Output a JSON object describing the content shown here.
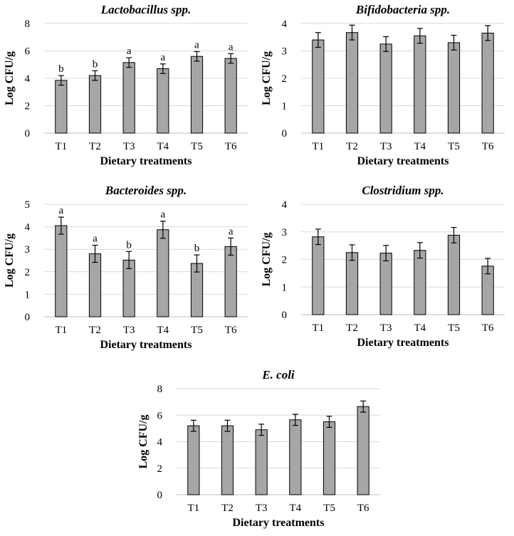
{
  "chart_data": [
    {
      "type": "bar",
      "title": "Lactobacillus spp.",
      "xlabel": "Dietary treatments",
      "ylabel": "Log CFU/g",
      "categories": [
        "T1",
        "T2",
        "T3",
        "T4",
        "T5",
        "T6"
      ],
      "values": [
        3.85,
        4.2,
        5.15,
        4.7,
        5.6,
        5.45
      ],
      "errors": [
        0.35,
        0.35,
        0.35,
        0.35,
        0.35,
        0.35
      ],
      "significance": [
        "b",
        "b",
        "a",
        "a",
        "a",
        "a"
      ],
      "ylim": [
        0,
        8
      ],
      "yticks": [
        "0",
        "2",
        "4",
        "6",
        "8"
      ],
      "bar_color": "#a6a6a6"
    },
    {
      "type": "bar",
      "title": "Bifidobacteria spp.",
      "xlabel": "Dietary treatments",
      "ylabel": "Log CFU/g",
      "categories": [
        "T1",
        "T2",
        "T3",
        "T4",
        "T5",
        "T6"
      ],
      "values": [
        3.4,
        3.67,
        3.25,
        3.55,
        3.3,
        3.65
      ],
      "errors": [
        0.27,
        0.27,
        0.27,
        0.27,
        0.27,
        0.27
      ],
      "significance": [],
      "ylim": [
        0,
        4
      ],
      "yticks": [
        "0",
        "1",
        "2",
        "3",
        "4"
      ],
      "bar_color": "#a6a6a6"
    },
    {
      "type": "bar",
      "title": "Bacteroides spp.",
      "xlabel": "Dietary treatments",
      "ylabel": "Log CFU/g",
      "categories": [
        "T1",
        "T2",
        "T3",
        "T4",
        "T5",
        "T6"
      ],
      "values": [
        4.05,
        2.8,
        2.52,
        3.87,
        2.37,
        3.12
      ],
      "errors": [
        0.38,
        0.38,
        0.38,
        0.38,
        0.38,
        0.38
      ],
      "significance": [
        "a",
        "a",
        "b",
        "a",
        "b",
        "a"
      ],
      "ylim": [
        0,
        5
      ],
      "yticks": [
        "0",
        "1",
        "2",
        "3",
        "4",
        "5"
      ],
      "bar_color": "#a6a6a6"
    },
    {
      "type": "bar",
      "title": "Clostridium spp.",
      "xlabel": "Dietary treatments",
      "ylabel": "Log CFU/g",
      "categories": [
        "T1",
        "T2",
        "T3",
        "T4",
        "T5",
        "T6"
      ],
      "values": [
        2.82,
        2.25,
        2.23,
        2.33,
        2.88,
        1.76
      ],
      "errors": [
        0.28,
        0.28,
        0.28,
        0.28,
        0.28,
        0.28
      ],
      "significance": [],
      "ylim": [
        0,
        4
      ],
      "yticks": [
        "0",
        "1",
        "2",
        "3",
        "4"
      ],
      "bar_color": "#a6a6a6"
    },
    {
      "type": "bar",
      "title": "E. coli",
      "xlabel": "Dietary treatments",
      "ylabel": "Log CFU/g",
      "categories": [
        "T1",
        "T2",
        "T3",
        "T4",
        "T5",
        "T6"
      ],
      "values": [
        5.2,
        5.2,
        4.9,
        5.65,
        5.5,
        6.65
      ],
      "errors": [
        0.42,
        0.42,
        0.42,
        0.42,
        0.42,
        0.42
      ],
      "significance": [],
      "ylim": [
        0,
        8
      ],
      "yticks": [
        "0",
        "2",
        "4",
        "6",
        "8"
      ],
      "bar_color": "#a6a6a6"
    }
  ]
}
